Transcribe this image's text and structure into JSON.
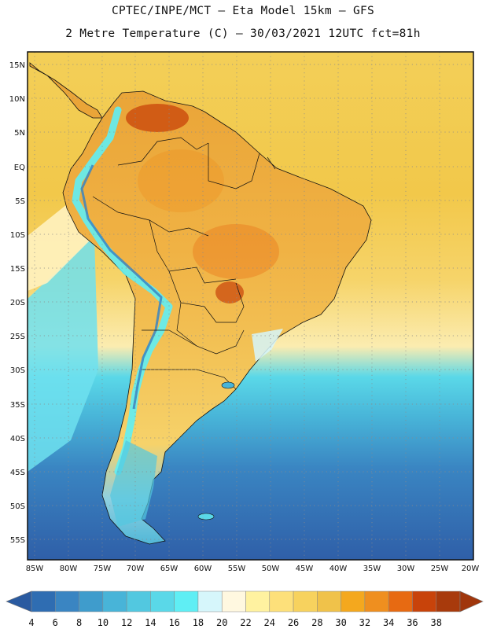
{
  "header": {
    "line1": "CPTEC/INPE/MCT –  Eta Model 15km – GFS",
    "line2": "2 Metre Temperature (C) – 30/03/2021 12UTC fct=81h"
  },
  "map": {
    "lat_labels": [
      "15N",
      "10N",
      "5N",
      "EQ",
      "5S",
      "10S",
      "15S",
      "20S",
      "25S",
      "30S",
      "35S",
      "40S",
      "45S",
      "50S",
      "55S"
    ],
    "lon_labels": [
      "85W",
      "80W",
      "75W",
      "70W",
      "65W",
      "60W",
      "55W",
      "50W",
      "45W",
      "40W",
      "35W",
      "30W",
      "25W",
      "20W"
    ]
  },
  "legend": {
    "values": [
      "4",
      "6",
      "8",
      "10",
      "12",
      "14",
      "16",
      "18",
      "20",
      "22",
      "24",
      "26",
      "28",
      "30",
      "32",
      "34",
      "36",
      "38"
    ],
    "colors": [
      "#2f6db2",
      "#3a85c2",
      "#3f9ccc",
      "#48b4d8",
      "#52c8e0",
      "#5ad8e8",
      "#5feef4",
      "#d6f6fb",
      "#fff8e0",
      "#fff2a0",
      "#fde07a",
      "#f7d25e",
      "#f0c24a",
      "#f4a81e",
      "#ef8f1f",
      "#e76a12",
      "#c8430a",
      "#a83a0c"
    ],
    "low_arrow_color": "#2a5aa0",
    "high_arrow_color": "#a0360c"
  }
}
